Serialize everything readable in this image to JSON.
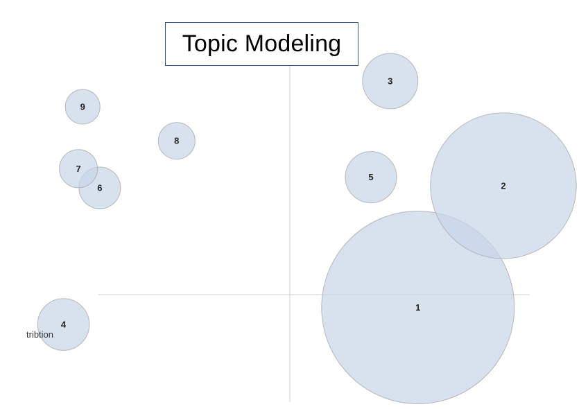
{
  "title": "Topic Modeling",
  "chart_data": {
    "type": "scatter",
    "title": "Topic Modeling",
    "xlabel": "",
    "ylabel": "",
    "x_axis_label_partial": "tribtion",
    "grid": false,
    "axes_through_origin": true,
    "xlim": [
      -1,
      1
    ],
    "ylim": [
      -0.8,
      1
    ],
    "colors": {
      "bubble_fill": "#c8d6e8",
      "bubble_stroke": "#a9a9a9",
      "axis": "#d0d0d0",
      "title_border": "#2f5597"
    },
    "topics": [
      {
        "label": "1",
        "x": 0.6,
        "y": -0.06,
        "size": 1.0
      },
      {
        "label": "2",
        "x": 1.0,
        "y": 0.51,
        "size": 0.757
      },
      {
        "label": "3",
        "x": 0.47,
        "y": 1.0,
        "size": 0.288
      },
      {
        "label": "4",
        "x": -1.06,
        "y": -0.14,
        "size": 0.268
      },
      {
        "label": "5",
        "x": 0.38,
        "y": 0.55,
        "size": 0.266
      },
      {
        "label": "6",
        "x": -0.89,
        "y": 0.5,
        "size": 0.216
      },
      {
        "label": "7",
        "x": -0.99,
        "y": 0.59,
        "size": 0.198
      },
      {
        "label": "8",
        "x": -0.53,
        "y": 0.72,
        "size": 0.191
      },
      {
        "label": "9",
        "x": -0.97,
        "y": 0.88,
        "size": 0.18
      }
    ]
  }
}
